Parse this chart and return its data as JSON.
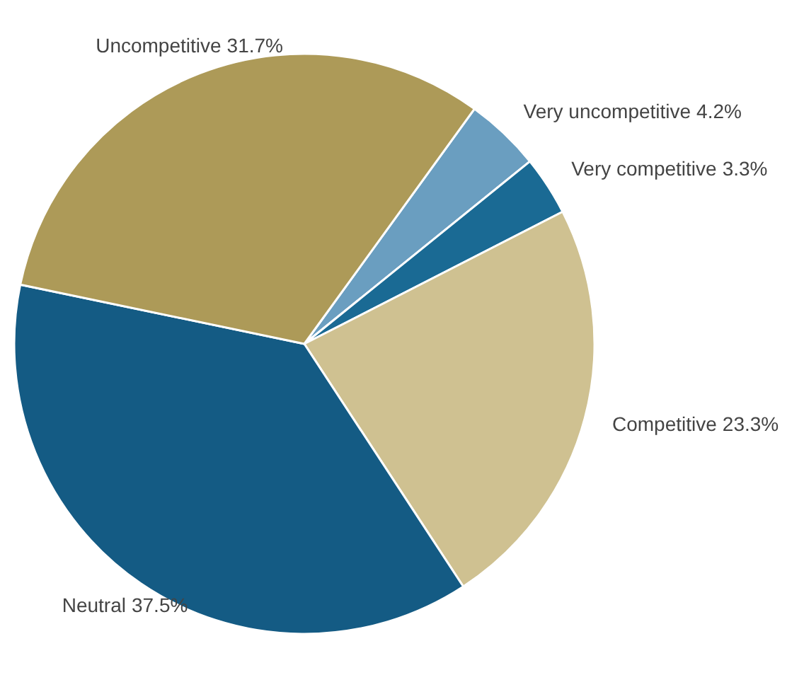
{
  "chart_data": {
    "type": "pie",
    "categories": [
      "Very uncompetitive",
      "Very competitive",
      "Competitive",
      "Neutral",
      "Uncompetitive"
    ],
    "values": [
      4.2,
      3.3,
      23.3,
      37.5,
      31.7
    ],
    "value_labels": [
      "4.2%",
      "3.3%",
      "23.3%",
      "37.5%",
      "31.7%"
    ],
    "colors": [
      "#6a9ec0",
      "#1a6a94",
      "#cfc191",
      "#145b84",
      "#ad9a58"
    ]
  }
}
